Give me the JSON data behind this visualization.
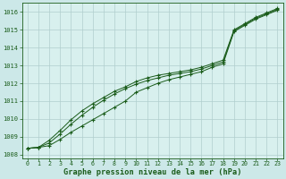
{
  "xlabel": "Graphe pression niveau de la mer (hPa)",
  "bg_color": "#cce8e8",
  "plot_bg_color": "#d8f0ee",
  "grid_color": "#b0cece",
  "line_color": "#1a5c1a",
  "xlim_min": -0.5,
  "xlim_max": 23.5,
  "ylim_min": 1007.8,
  "ylim_max": 1016.5,
  "yticks": [
    1008,
    1009,
    1010,
    1011,
    1012,
    1013,
    1014,
    1015,
    1016
  ],
  "xticks": [
    0,
    1,
    2,
    3,
    4,
    5,
    6,
    7,
    8,
    9,
    10,
    11,
    12,
    13,
    14,
    15,
    16,
    17,
    18,
    19,
    20,
    21,
    22,
    23
  ],
  "series1": [
    1008.35,
    1008.4,
    1008.5,
    1008.85,
    1009.25,
    1009.6,
    1009.95,
    1010.3,
    1010.65,
    1011.0,
    1011.5,
    1011.75,
    1012.0,
    1012.2,
    1012.35,
    1012.5,
    1012.65,
    1012.9,
    1013.1,
    1014.9,
    1015.25,
    1015.6,
    1015.85,
    1016.1
  ],
  "series2": [
    1008.35,
    1008.4,
    1008.65,
    1009.15,
    1009.7,
    1010.2,
    1010.65,
    1011.05,
    1011.4,
    1011.7,
    1011.95,
    1012.15,
    1012.3,
    1012.45,
    1012.55,
    1012.65,
    1012.8,
    1013.0,
    1013.2,
    1014.95,
    1015.3,
    1015.65,
    1015.9,
    1016.15
  ],
  "series3": [
    1008.35,
    1008.4,
    1008.8,
    1009.35,
    1009.95,
    1010.45,
    1010.85,
    1011.2,
    1011.55,
    1011.8,
    1012.1,
    1012.3,
    1012.45,
    1012.55,
    1012.65,
    1012.75,
    1012.9,
    1013.1,
    1013.3,
    1015.0,
    1015.35,
    1015.7,
    1015.95,
    1016.2
  ]
}
